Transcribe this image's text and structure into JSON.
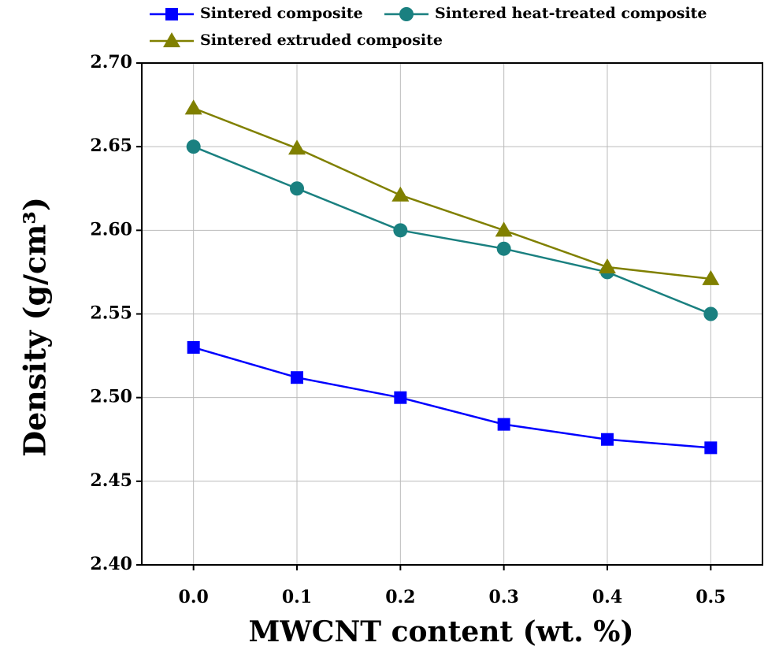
{
  "chart_data": {
    "type": "line",
    "xlabel": "MWCNT content (wt. %)",
    "ylabel": "Density (g/cm³)",
    "x": [
      0,
      0.1,
      0.2,
      0.3,
      0.4,
      0.5
    ],
    "xlim": [
      -0.05,
      0.55
    ],
    "xticks": [
      {
        "value": 0,
        "label": "0.0"
      },
      0.1,
      0.2,
      0.3,
      0.4,
      0.5
    ],
    "ylim": [
      2.4,
      2.7
    ],
    "yticks": [
      {
        "value": 2.4,
        "label": "2.40"
      },
      2.45,
      {
        "value": 2.5,
        "label": "2.50"
      },
      2.55,
      {
        "value": 2.6,
        "label": "2.60"
      },
      2.65,
      {
        "value": 2.7,
        "label": "2.70"
      }
    ],
    "grid": true,
    "series": [
      {
        "name": "Sintered composite",
        "color": "#0000ff",
        "marker": "square",
        "values": [
          2.53,
          2.512,
          2.5,
          2.484,
          2.475,
          2.47
        ]
      },
      {
        "name": "Sintered heat-treated composite",
        "color": "#1a8080",
        "marker": "circle",
        "values": [
          2.65,
          2.625,
          2.6,
          2.589,
          2.575,
          2.55
        ]
      },
      {
        "name": "Sintered extruded composite",
        "color": "#808000",
        "marker": "triangle",
        "values": [
          2.673,
          2.649,
          2.621,
          2.6,
          2.578,
          2.571
        ]
      }
    ]
  }
}
